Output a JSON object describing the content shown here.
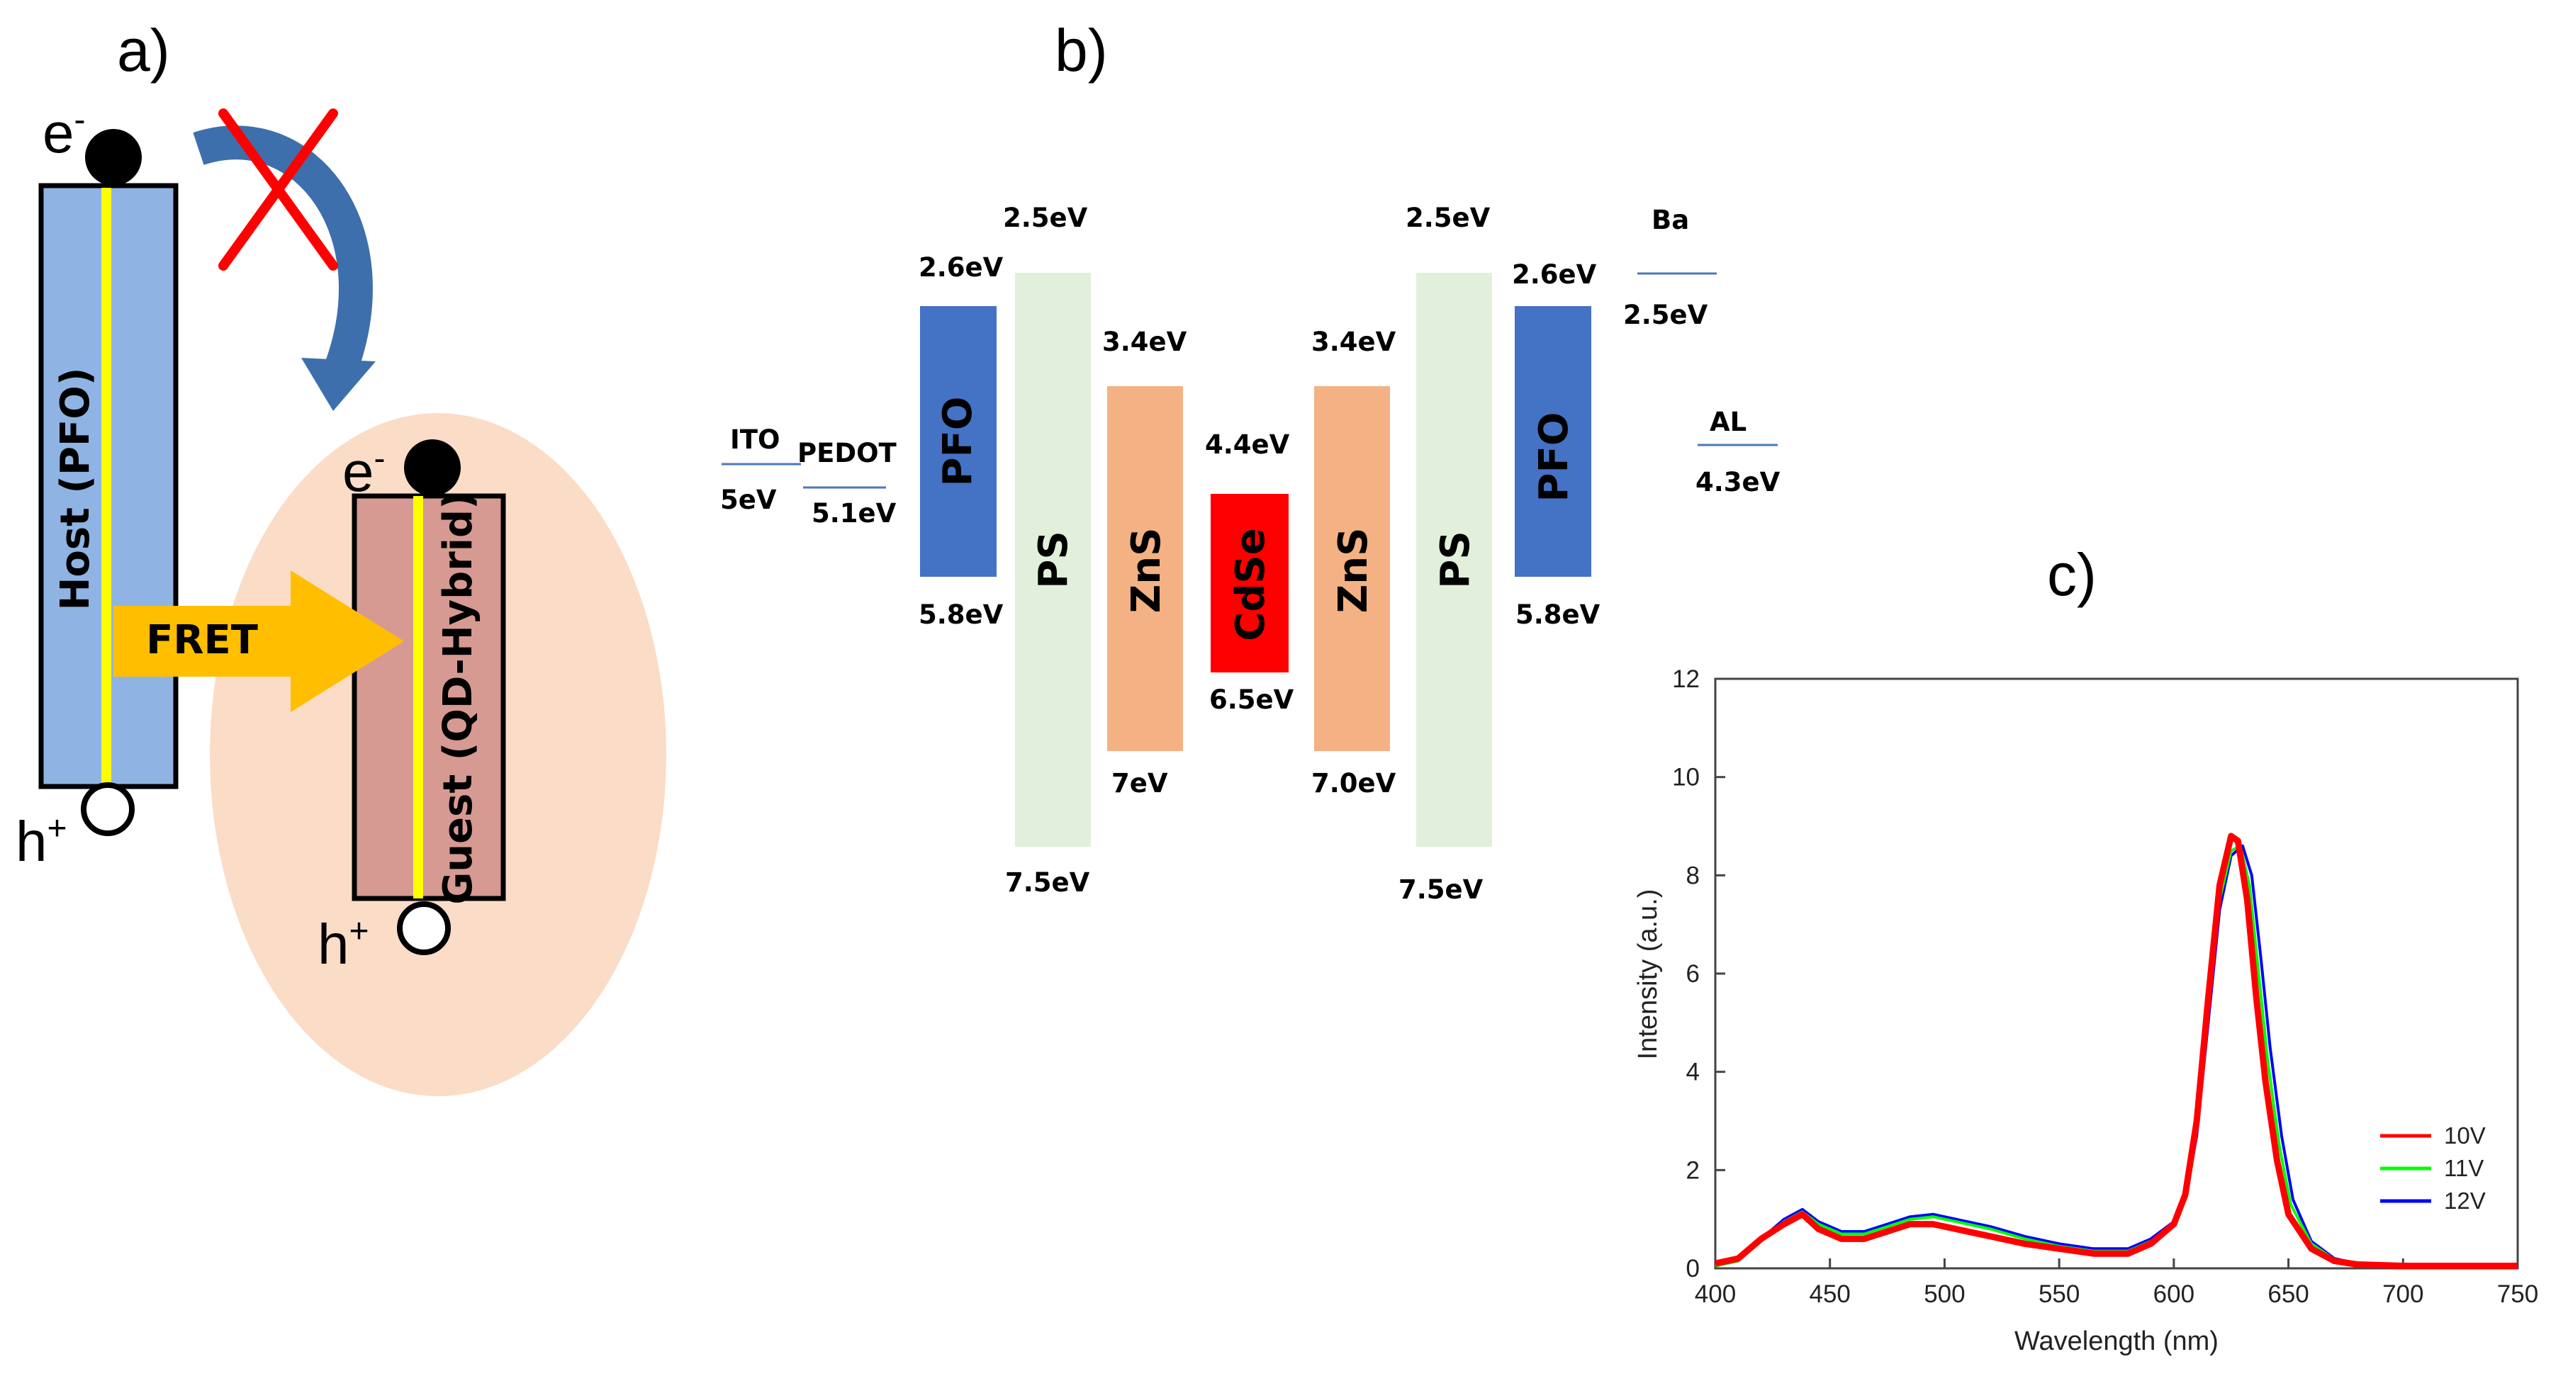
{
  "colors": {
    "host_fill": "#8fb4e3",
    "guest_fill": "#d69a93",
    "ellipse_fill": "#fbdcc7",
    "yellow": "#ffff00",
    "fret_arrow": "#ffbf00",
    "curved_arrow": "#3e6fad",
    "cross": "#ff0000",
    "pfo": "#4472c4",
    "ps": "#e2efda",
    "zns": "#f4b183",
    "cdse": "#ff0000",
    "series_10v": "#ff0000",
    "series_11v": "#00ff00",
    "series_12v": "#0000ff"
  },
  "panel_a": {
    "letter": "a)",
    "host_label": "Host (PFO)",
    "guest_label": "Guest (QD-Hybrid)",
    "fret_label": "FRET",
    "electron": "e",
    "electron_sup": "-",
    "hole": "h",
    "hole_sup": "+"
  },
  "panel_b": {
    "letter": "b)",
    "layers": {
      "pfo_left": "PFO",
      "ps_left": "PS",
      "zns_left": "ZnS",
      "cdse": "CdSe",
      "zns_right": "ZnS",
      "ps_right": "PS",
      "pfo_right": "PFO"
    },
    "electrodes": {
      "ito": "ITO",
      "ito_value": "5eV",
      "pedot": "PEDOT",
      "pedot_value": "5.1eV",
      "ba": "Ba",
      "ba_value": "2.5eV",
      "al": "AL",
      "al_value": "4.3eV"
    },
    "levels": {
      "pfo_left_lumo": "2.6eV",
      "pfo_left_homo": "5.8eV",
      "ps_left_lumo": "2.5eV",
      "ps_left_homo": "7.5eV",
      "zns_left_lumo": "3.4eV",
      "zns_left_homo": "7eV",
      "cdse_lumo": "4.4eV",
      "cdse_homo": "6.5eV",
      "zns_right_lumo": "3.4eV",
      "zns_right_homo": "7.0eV",
      "ps_right_lumo": "2.5eV",
      "ps_right_homo": "7.5eV",
      "pfo_right_lumo": "2.6eV",
      "pfo_right_homo": "5.8eV"
    }
  },
  "chart_data": {
    "type": "line",
    "panel_letter": "c)",
    "title": "",
    "xlabel": "Wavelength (nm)",
    "ylabel": "Intensity (a.u.)",
    "xlim": [
      400,
      750
    ],
    "ylim": [
      0,
      12
    ],
    "xticks": [
      "400",
      "450",
      "500",
      "550",
      "600",
      "650",
      "700",
      "750"
    ],
    "yticks": [
      "0",
      "2",
      "4",
      "6",
      "8",
      "10",
      "12"
    ],
    "legend_position": "bottom-right",
    "series": [
      {
        "name": "10V",
        "x": [
          400,
          410,
          420,
          430,
          438,
          445,
          455,
          465,
          475,
          485,
          495,
          505,
          520,
          535,
          550,
          565,
          580,
          590,
          600,
          605,
          610,
          615,
          620,
          625,
          628,
          632,
          636,
          640,
          645,
          650,
          660,
          670,
          680,
          700,
          720,
          750
        ],
        "y": [
          0.1,
          0.2,
          0.6,
          0.9,
          1.1,
          0.8,
          0.6,
          0.6,
          0.75,
          0.9,
          0.9,
          0.8,
          0.65,
          0.5,
          0.4,
          0.3,
          0.3,
          0.5,
          0.9,
          1.5,
          3.0,
          5.5,
          7.8,
          8.8,
          8.7,
          7.5,
          5.5,
          3.8,
          2.2,
          1.1,
          0.4,
          0.15,
          0.08,
          0.05,
          0.05,
          0.05
        ]
      },
      {
        "name": "11V",
        "x": [
          400,
          410,
          420,
          430,
          438,
          445,
          455,
          465,
          475,
          485,
          495,
          505,
          520,
          535,
          550,
          565,
          580,
          590,
          600,
          605,
          610,
          615,
          620,
          625,
          629,
          633,
          637,
          641,
          646,
          651,
          660,
          670,
          680,
          700,
          720,
          750
        ],
        "y": [
          0.05,
          0.15,
          0.6,
          0.95,
          1.15,
          0.9,
          0.7,
          0.7,
          0.85,
          1.0,
          1.05,
          0.95,
          0.8,
          0.6,
          0.45,
          0.35,
          0.35,
          0.55,
          0.9,
          1.4,
          2.8,
          5.2,
          7.5,
          8.5,
          8.6,
          7.8,
          6.0,
          4.2,
          2.5,
          1.3,
          0.5,
          0.18,
          0.1,
          0.05,
          0.05,
          0.05
        ]
      },
      {
        "name": "12V",
        "x": [
          400,
          410,
          420,
          430,
          438,
          445,
          455,
          465,
          475,
          485,
          495,
          505,
          520,
          535,
          550,
          565,
          580,
          590,
          600,
          605,
          610,
          615,
          620,
          625,
          630,
          634,
          638,
          642,
          647,
          652,
          660,
          670,
          680,
          700,
          720,
          750
        ],
        "y": [
          0.05,
          0.15,
          0.6,
          1.0,
          1.2,
          0.95,
          0.75,
          0.75,
          0.9,
          1.05,
          1.1,
          1.0,
          0.85,
          0.65,
          0.5,
          0.4,
          0.4,
          0.6,
          0.95,
          1.4,
          2.7,
          5.0,
          7.3,
          8.4,
          8.6,
          8.0,
          6.3,
          4.5,
          2.7,
          1.4,
          0.55,
          0.2,
          0.1,
          0.05,
          0.05,
          0.05
        ]
      }
    ]
  }
}
